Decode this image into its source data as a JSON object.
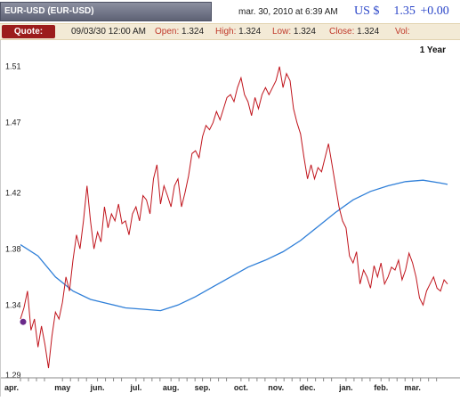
{
  "header": {
    "title": "EUR-USD (EUR-USD)",
    "datetime": "mar. 30, 2010 at 6:39 AM",
    "currency": "US $",
    "price": "1.35",
    "change": "+0.00"
  },
  "quote": {
    "button": "Quote:",
    "date": "09/03/30 12:00 AM",
    "open_label": "Open:",
    "open": "1.324",
    "high_label": "High:",
    "high": "1.324",
    "low_label": "Low:",
    "low": "1.324",
    "close_label": "Close:",
    "close": "1.324",
    "vol_label": "Vol:",
    "vol": ""
  },
  "colors": {
    "price_line": "#c0141c",
    "moving_average": "#2f7fd8",
    "marker": "#6a2a8a",
    "quote_button": "#9c1c1c"
  },
  "chart_data": {
    "type": "line",
    "period_label": "1 Year",
    "x_tick_labels": [
      "apr.",
      "may",
      "jun.",
      "jul.",
      "aug.",
      "sep.",
      "oct.",
      "nov.",
      "dec.",
      "jan.",
      "feb.",
      "mar."
    ],
    "y_tick_labels": [
      "1.51",
      "1.47",
      "1.42",
      "1.38",
      "1.34",
      "1.29"
    ],
    "y_ticks": [
      1.51,
      1.47,
      1.42,
      1.38,
      1.34,
      1.29
    ],
    "ylim": [
      1.29,
      1.52
    ],
    "xlim": [
      0,
      12.2
    ],
    "grid": false,
    "series": [
      {
        "role": "price",
        "x": [
          0,
          0.1,
          0.2,
          0.3,
          0.4,
          0.5,
          0.6,
          0.7,
          0.8,
          0.9,
          1.0,
          1.1,
          1.2,
          1.3,
          1.4,
          1.5,
          1.6,
          1.7,
          1.8,
          1.9,
          2.0,
          2.1,
          2.2,
          2.3,
          2.4,
          2.5,
          2.6,
          2.7,
          2.8,
          2.9,
          3.0,
          3.1,
          3.2,
          3.3,
          3.4,
          3.5,
          3.6,
          3.7,
          3.8,
          3.9,
          4.0,
          4.1,
          4.2,
          4.3,
          4.4,
          4.5,
          4.6,
          4.7,
          4.8,
          4.9,
          5.0,
          5.1,
          5.2,
          5.3,
          5.4,
          5.5,
          5.6,
          5.7,
          5.8,
          5.9,
          6.0,
          6.1,
          6.2,
          6.3,
          6.4,
          6.5,
          6.6,
          6.7,
          6.8,
          6.9,
          7.0,
          7.1,
          7.2,
          7.3,
          7.4,
          7.5,
          7.6,
          7.7,
          7.8,
          7.9,
          8.0,
          8.1,
          8.2,
          8.3,
          8.4,
          8.5,
          8.6,
          8.7,
          8.8,
          8.9,
          9.0,
          9.1,
          9.2,
          9.3,
          9.4,
          9.5,
          9.6,
          9.7,
          9.8,
          9.9,
          10.0,
          10.1,
          10.2,
          10.3,
          10.4,
          10.5,
          10.6,
          10.7,
          10.8,
          10.9,
          11.0,
          11.1,
          11.2,
          11.3,
          11.4,
          11.5,
          11.6,
          11.7,
          11.8,
          11.9,
          12.0,
          12.1,
          12.2
        ],
        "values": [
          1.33,
          1.338,
          1.35,
          1.322,
          1.33,
          1.31,
          1.325,
          1.312,
          1.295,
          1.318,
          1.335,
          1.33,
          1.342,
          1.36,
          1.35,
          1.372,
          1.39,
          1.38,
          1.4,
          1.425,
          1.4,
          1.38,
          1.392,
          1.385,
          1.41,
          1.395,
          1.405,
          1.4,
          1.412,
          1.398,
          1.4,
          1.39,
          1.405,
          1.41,
          1.4,
          1.418,
          1.415,
          1.405,
          1.43,
          1.44,
          1.412,
          1.425,
          1.418,
          1.41,
          1.425,
          1.43,
          1.41,
          1.42,
          1.432,
          1.448,
          1.45,
          1.445,
          1.46,
          1.468,
          1.465,
          1.47,
          1.478,
          1.472,
          1.48,
          1.488,
          1.49,
          1.485,
          1.495,
          1.502,
          1.49,
          1.485,
          1.475,
          1.488,
          1.48,
          1.49,
          1.495,
          1.49,
          1.495,
          1.5,
          1.51,
          1.495,
          1.505,
          1.5,
          1.48,
          1.47,
          1.462,
          1.445,
          1.43,
          1.44,
          1.43,
          1.438,
          1.435,
          1.445,
          1.455,
          1.44,
          1.425,
          1.41,
          1.4,
          1.395,
          1.375,
          1.37,
          1.378,
          1.355,
          1.365,
          1.36,
          1.352,
          1.368,
          1.36,
          1.37,
          1.355,
          1.36,
          1.367,
          1.365,
          1.372,
          1.358,
          1.365,
          1.377,
          1.37,
          1.36,
          1.345,
          1.34,
          1.35,
          1.355,
          1.36,
          1.352,
          1.35,
          1.358,
          1.355
        ],
        "color": "#c0141c"
      },
      {
        "role": "moving_average",
        "x": [
          0,
          0.5,
          1.0,
          1.5,
          2.0,
          2.5,
          3.0,
          3.5,
          4.0,
          4.5,
          5.0,
          5.5,
          6.0,
          6.5,
          7.0,
          7.5,
          8.0,
          8.5,
          9.0,
          9.5,
          10.0,
          10.5,
          11.0,
          11.5,
          12.0,
          12.2
        ],
        "values": [
          1.383,
          1.375,
          1.36,
          1.35,
          1.344,
          1.341,
          1.338,
          1.337,
          1.336,
          1.34,
          1.346,
          1.353,
          1.36,
          1.367,
          1.372,
          1.378,
          1.386,
          1.396,
          1.406,
          1.415,
          1.421,
          1.425,
          1.428,
          1.429,
          1.427,
          1.426
        ],
        "color": "#2f7fd8"
      }
    ],
    "marker": {
      "x": 0,
      "value": 1.328
    }
  }
}
